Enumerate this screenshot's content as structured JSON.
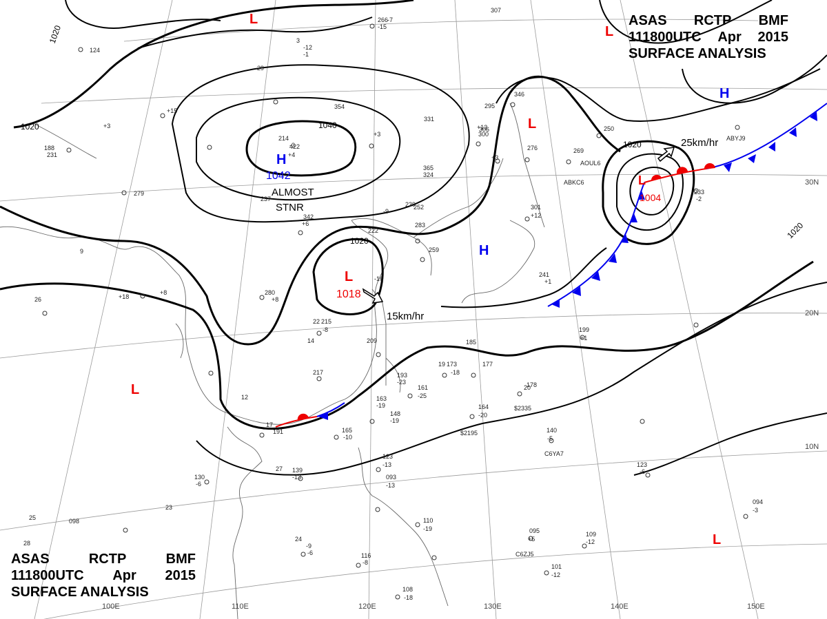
{
  "header": {
    "line1": [
      "ASAS",
      "RCTP",
      "BMF"
    ],
    "line2": [
      "111800UTC",
      "Apr",
      "2015"
    ],
    "line3": "SURFACE ANALYSIS"
  },
  "colors": {
    "isobar": "#000000",
    "high_label": "#0000ee",
    "low_label": "#ee0000",
    "cold_front": "#0000ee",
    "warm_front": "#ee0000",
    "graticule": "#9a9a9a",
    "coast": "#666666"
  },
  "lat_labels": [
    "30N",
    "20N",
    "10N"
  ],
  "lon_labels": [
    "100E",
    "110E",
    "120E",
    "130E",
    "140E",
    "150E"
  ],
  "isobar_labels": [
    "1020",
    "1020",
    "1040",
    "1020",
    "1020",
    "1020"
  ],
  "pressure_centers": [
    {
      "type": "H",
      "value": "1042"
    },
    {
      "type": "L",
      "value": "1018"
    },
    {
      "type": "L",
      "value": "1004"
    },
    {
      "type": "H",
      "value": ""
    },
    {
      "type": "H",
      "value": ""
    },
    {
      "type": "L",
      "value": ""
    },
    {
      "type": "L",
      "value": ""
    },
    {
      "type": "L",
      "value": ""
    },
    {
      "type": "L",
      "value": ""
    }
  ],
  "annotations": {
    "stationary_line1": "ALMOST",
    "stationary_line2": "STNR",
    "motion_low_sc": "15km/hr",
    "motion_low_pacific": "25km/hr"
  },
  "station_numbers": [
    "266",
    "-15",
    "307",
    "124",
    "3",
    "-12",
    "-1",
    "-29",
    "354",
    "331",
    "295",
    "306",
    "346",
    "-3",
    "+4",
    "+3",
    "188",
    "231",
    "+15",
    "279",
    "214",
    "422",
    "+3",
    "365",
    "324",
    "+13",
    "300",
    "+3",
    "276",
    "269",
    "250",
    "239",
    "-9",
    "237",
    "342",
    "+6",
    "252",
    "283",
    "259",
    "222",
    "301",
    "+12",
    "241",
    "+1",
    "233",
    "-2",
    "280",
    "+8",
    "215",
    "-8",
    "209",
    "217",
    "173",
    "-18",
    "177",
    "185",
    "193",
    "-23",
    "161",
    "-25",
    "178",
    "163",
    "-19",
    "148",
    "-19",
    "164",
    "-20",
    "140",
    "-5",
    "191",
    "165",
    "-10",
    "139",
    "-13",
    "130",
    "-6",
    "123",
    "-13",
    "093",
    "-13",
    "110",
    "-19",
    "116",
    "-8",
    "098",
    "-9",
    "-6",
    "095",
    "+5",
    "109",
    "-12",
    "101",
    "-12",
    "108",
    "-18",
    "094",
    "-3",
    "123",
    "-6",
    "199",
    "+1",
    "-16",
    "+18",
    "+8",
    "26",
    "25",
    "27",
    "28",
    "22",
    "14",
    "12",
    "17",
    "19",
    "20",
    "23",
    "24",
    "9",
    "-7"
  ],
  "ship_calls": [
    "ABKC6",
    "AOUL6",
    "ABYJ9",
    "$2335",
    "$2195",
    "C6YA7",
    "C6ZJ5"
  ]
}
